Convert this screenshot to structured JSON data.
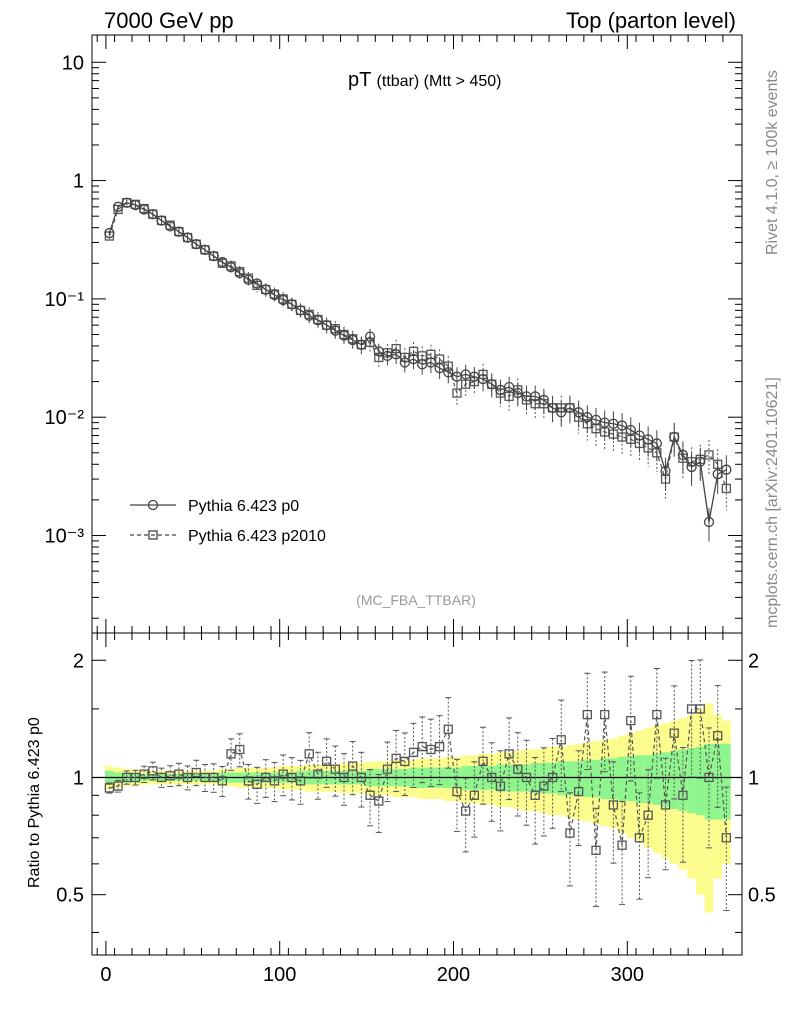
{
  "header": {
    "left": "7000 GeV pp",
    "right": "Top (parton level)"
  },
  "side": {
    "rivet": "Rivet 4.1.0, ≥ 100k events",
    "mcplots": "mcplots.cern.ch [arXiv:2401.10621]"
  },
  "chart_data": {
    "type": "line",
    "title_main": "pT",
    "title_sub": "(ttbar) (Mtt > 450)",
    "analysis": "(MC_FBA_TTBAR)",
    "xlabel": "",
    "ylabel_main": "",
    "ylabel_ratio": "Ratio to Pythia 6.423 p0",
    "xlim": [
      -8,
      366
    ],
    "ylim_main": [
      0.00015,
      17
    ],
    "ylim_ratio": [
      0.35,
      2.35
    ],
    "x_ticks": [
      "0",
      "100",
      "200",
      "300"
    ],
    "y_ticks_main": [
      "10",
      "1",
      "10⁻¹",
      "10⁻²",
      "10⁻³"
    ],
    "y_ticks_ratio": [
      "0.5",
      "1",
      "2"
    ],
    "legend": [
      "Pythia 6.423 p0",
      "Pythia 6.423 p2010"
    ],
    "band_colors": {
      "inner": "#8ef58e",
      "outer": "#fcfc8c"
    },
    "series": [
      {
        "name": "Pythia 6.423 p0",
        "x": [
          2,
          7,
          12,
          17,
          22,
          27,
          32,
          37,
          42,
          47,
          52,
          57,
          62,
          67,
          72,
          77,
          82,
          87,
          92,
          97,
          102,
          107,
          112,
          117,
          122,
          127,
          132,
          137,
          142,
          147,
          152,
          157,
          162,
          167,
          172,
          177,
          182,
          187,
          192,
          197,
          202,
          207,
          212,
          217,
          222,
          227,
          232,
          237,
          242,
          247,
          252,
          257,
          262,
          267,
          272,
          277,
          282,
          287,
          292,
          297,
          302,
          307,
          312,
          317,
          322,
          327,
          332,
          337,
          342,
          347,
          352,
          357
        ],
        "y": [
          0.36,
          0.6,
          0.65,
          0.62,
          0.57,
          0.52,
          0.46,
          0.41,
          0.37,
          0.33,
          0.29,
          0.26,
          0.23,
          0.205,
          0.185,
          0.165,
          0.145,
          0.135,
          0.12,
          0.108,
          0.098,
          0.09,
          0.08,
          0.072,
          0.066,
          0.06,
          0.054,
          0.049,
          0.045,
          0.041,
          0.048,
          0.036,
          0.033,
          0.034,
          0.029,
          0.031,
          0.028,
          0.029,
          0.026,
          0.024,
          0.022,
          0.023,
          0.022,
          0.021,
          0.019,
          0.017,
          0.018,
          0.016,
          0.015,
          0.015,
          0.014,
          0.012,
          0.011,
          0.012,
          0.011,
          0.01,
          0.0095,
          0.009,
          0.0088,
          0.0085,
          0.0078,
          0.007,
          0.0065,
          0.006,
          0.0035,
          0.0068,
          0.0048,
          0.0038,
          0.0042,
          0.0013,
          0.0033,
          0.0036
        ]
      },
      {
        "name": "Pythia 6.423 p2010",
        "x": [
          2,
          7,
          12,
          17,
          22,
          27,
          32,
          37,
          42,
          47,
          52,
          57,
          62,
          67,
          72,
          77,
          82,
          87,
          92,
          97,
          102,
          107,
          112,
          117,
          122,
          127,
          132,
          137,
          142,
          147,
          152,
          157,
          162,
          167,
          172,
          177,
          182,
          187,
          192,
          197,
          202,
          207,
          212,
          217,
          222,
          227,
          232,
          237,
          242,
          247,
          252,
          257,
          262,
          267,
          272,
          277,
          282,
          287,
          292,
          297,
          302,
          307,
          312,
          317,
          322,
          327,
          332,
          337,
          342,
          347,
          352,
          357
        ],
        "y": [
          0.34,
          0.57,
          0.65,
          0.63,
          0.58,
          0.52,
          0.46,
          0.42,
          0.37,
          0.33,
          0.29,
          0.26,
          0.23,
          0.2,
          0.19,
          0.17,
          0.15,
          0.13,
          0.12,
          0.11,
          0.1,
          0.09,
          0.08,
          0.074,
          0.067,
          0.06,
          0.056,
          0.05,
          0.046,
          0.041,
          0.043,
          0.032,
          0.035,
          0.038,
          0.032,
          0.036,
          0.033,
          0.034,
          0.031,
          0.027,
          0.016,
          0.019,
          0.02,
          0.023,
          0.019,
          0.016,
          0.015,
          0.017,
          0.014,
          0.013,
          0.013,
          0.012,
          0.012,
          0.012,
          0.01,
          0.0088,
          0.008,
          0.0075,
          0.0072,
          0.0068,
          0.0065,
          0.006,
          0.0055,
          0.005,
          0.003,
          0.0068,
          0.0045,
          0.0042,
          0.0044,
          0.0048,
          0.004,
          0.0025
        ]
      }
    ],
    "ratio": {
      "x": [
        2,
        7,
        12,
        17,
        22,
        27,
        32,
        37,
        42,
        47,
        52,
        57,
        62,
        67,
        72,
        77,
        82,
        87,
        92,
        97,
        102,
        107,
        112,
        117,
        122,
        127,
        132,
        137,
        142,
        147,
        152,
        157,
        162,
        167,
        172,
        177,
        182,
        187,
        192,
        197,
        202,
        207,
        212,
        217,
        222,
        227,
        232,
        237,
        242,
        247,
        252,
        257,
        262,
        267,
        272,
        277,
        282,
        287,
        292,
        297,
        302,
        307,
        312,
        317,
        322,
        327,
        332,
        337,
        342,
        347,
        352,
        357
      ],
      "p2010": [
        0.94,
        0.95,
        1.0,
        1.0,
        1.02,
        1.04,
        1.0,
        1.01,
        1.02,
        1.0,
        1.03,
        1.0,
        1.0,
        0.98,
        1.15,
        1.18,
        0.98,
        0.96,
        1.0,
        0.98,
        1.02,
        1.0,
        0.98,
        1.15,
        1.02,
        1.1,
        1.05,
        1.0,
        1.07,
        1.0,
        0.9,
        0.87,
        1.05,
        1.12,
        1.1,
        1.16,
        1.2,
        1.18,
        1.2,
        1.33,
        0.92,
        0.82,
        0.9,
        1.1,
        1.0,
        0.95,
        1.15,
        1.05,
        1.0,
        0.9,
        0.95,
        1.0,
        1.25,
        0.72,
        0.92,
        1.45,
        0.65,
        1.45,
        0.85,
        0.67,
        1.4,
        0.7,
        0.8,
        1.45,
        0.85,
        1.3,
        0.9,
        1.5,
        1.5,
        1.0,
        1.28,
        0.7
      ],
      "inner_half": [
        0.04,
        0.03,
        0.03,
        0.03,
        0.02,
        0.02,
        0.02,
        0.02,
        0.02,
        0.02,
        0.02,
        0.02,
        0.02,
        0.03,
        0.03,
        0.03,
        0.03,
        0.03,
        0.03,
        0.03,
        0.03,
        0.03,
        0.04,
        0.04,
        0.04,
        0.04,
        0.04,
        0.04,
        0.04,
        0.04,
        0.05,
        0.05,
        0.05,
        0.05,
        0.05,
        0.06,
        0.06,
        0.06,
        0.06,
        0.06,
        0.06,
        0.07,
        0.07,
        0.07,
        0.07,
        0.08,
        0.08,
        0.08,
        0.08,
        0.09,
        0.09,
        0.09,
        0.1,
        0.1,
        0.1,
        0.11,
        0.11,
        0.12,
        0.12,
        0.13,
        0.13,
        0.14,
        0.14,
        0.15,
        0.16,
        0.17,
        0.18,
        0.19,
        0.2,
        0.22,
        0.22,
        0.22
      ],
      "outer_half": [
        0.07,
        0.06,
        0.05,
        0.05,
        0.04,
        0.04,
        0.04,
        0.04,
        0.04,
        0.04,
        0.04,
        0.04,
        0.04,
        0.05,
        0.05,
        0.06,
        0.06,
        0.06,
        0.06,
        0.06,
        0.07,
        0.07,
        0.07,
        0.08,
        0.08,
        0.08,
        0.08,
        0.09,
        0.09,
        0.09,
        0.1,
        0.1,
        0.1,
        0.11,
        0.11,
        0.11,
        0.12,
        0.12,
        0.12,
        0.13,
        0.13,
        0.14,
        0.14,
        0.15,
        0.15,
        0.16,
        0.16,
        0.17,
        0.18,
        0.18,
        0.19,
        0.2,
        0.2,
        0.21,
        0.22,
        0.23,
        0.24,
        0.25,
        0.26,
        0.28,
        0.3,
        0.32,
        0.34,
        0.36,
        0.38,
        0.4,
        0.42,
        0.45,
        0.5,
        0.55,
        0.45,
        0.4
      ]
    }
  }
}
